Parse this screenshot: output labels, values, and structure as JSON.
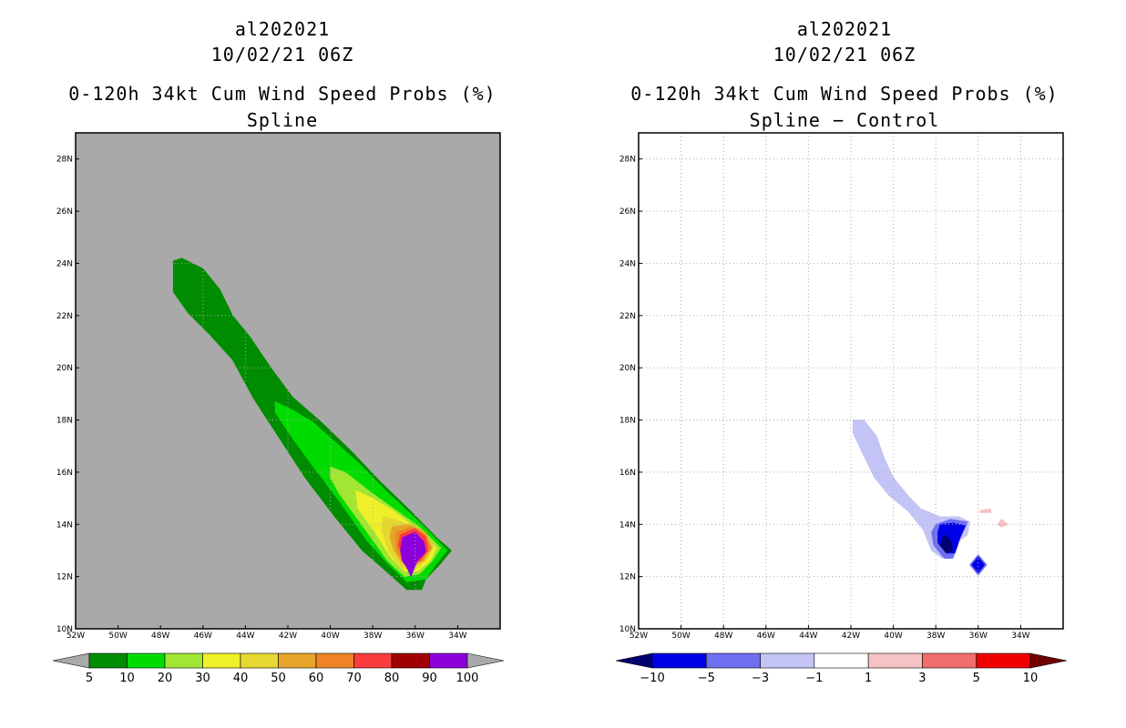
{
  "left": {
    "storm_id": "al202021",
    "datetime": "10/02/21 06Z",
    "product": "0-120h 34kt Cum Wind Speed Probs (%)",
    "subtitle": "Spline"
  },
  "right": {
    "storm_id": "al202021",
    "datetime": "10/02/21 06Z",
    "product": "0-120h 34kt Cum Wind Speed Probs (%)",
    "subtitle": "Spline − Control"
  },
  "chart_data": [
    {
      "type": "heatmap",
      "name": "spline",
      "title": "0-120h 34kt Cum Wind Speed Probs (%)",
      "subtitle": "Spline",
      "xlim": [
        -52,
        -32
      ],
      "ylim": [
        10,
        29
      ],
      "x_ticks": [
        -52,
        -50,
        -48,
        -46,
        -44,
        -42,
        -40,
        -38,
        -36,
        -34
      ],
      "x_tick_labels": [
        "52W",
        "50W",
        "48W",
        "46W",
        "44W",
        "42W",
        "40W",
        "38W",
        "36W",
        "34W"
      ],
      "y_ticks": [
        10,
        12,
        14,
        16,
        18,
        20,
        22,
        24,
        26,
        28
      ],
      "y_tick_labels": [
        "10N",
        "12N",
        "14N",
        "16N",
        "18N",
        "20N",
        "22N",
        "24N",
        "26N",
        "28N"
      ],
      "background_color": "#a9a9a9",
      "grid": true,
      "colorbar": {
        "levels": [
          "5",
          "10",
          "20",
          "30",
          "40",
          "50",
          "60",
          "70",
          "80",
          "90",
          "100"
        ],
        "colors": [
          "#008c00",
          "#00dc00",
          "#a0e632",
          "#f0f028",
          "#e6d732",
          "#e6a528",
          "#f08228",
          "#fa3c3c",
          "#a00000",
          "#8c00dc"
        ],
        "extend_colors": [
          "#a9a9a9",
          "#a9a9a9"
        ]
      },
      "contours": [
        {
          "level": 5,
          "color": "#008c00",
          "points": [
            [
              -47.4,
              24.1
            ],
            [
              -47.0,
              24.2
            ],
            [
              -46.0,
              23.8
            ],
            [
              -45.2,
              23.0
            ],
            [
              -44.6,
              22.0
            ],
            [
              -43.8,
              21.2
            ],
            [
              -42.8,
              20.0
            ],
            [
              -41.8,
              18.9
            ],
            [
              -40.4,
              17.9
            ],
            [
              -39.0,
              16.8
            ],
            [
              -37.6,
              15.6
            ],
            [
              -36.2,
              14.5
            ],
            [
              -35.0,
              13.5
            ],
            [
              -34.3,
              13.0
            ],
            [
              -34.8,
              12.5
            ],
            [
              -35.5,
              11.9
            ],
            [
              -35.7,
              11.5
            ],
            [
              -36.4,
              11.5
            ],
            [
              -37.5,
              12.3
            ],
            [
              -38.5,
              13.0
            ],
            [
              -39.8,
              14.3
            ],
            [
              -41.2,
              15.8
            ],
            [
              -42.4,
              17.3
            ],
            [
              -43.6,
              18.8
            ],
            [
              -44.6,
              20.3
            ],
            [
              -45.6,
              21.2
            ],
            [
              -46.7,
              22.1
            ],
            [
              -47.4,
              22.9
            ]
          ]
        },
        {
          "level": 10,
          "color": "#00dc00",
          "points": [
            [
              -42.6,
              18.7
            ],
            [
              -41.8,
              18.4
            ],
            [
              -40.8,
              17.9
            ],
            [
              -39.7,
              17.1
            ],
            [
              -38.6,
              16.3
            ],
            [
              -37.4,
              15.3
            ],
            [
              -36.2,
              14.4
            ],
            [
              -35.2,
              13.6
            ],
            [
              -34.5,
              13.0
            ],
            [
              -35.0,
              12.5
            ],
            [
              -35.5,
              11.9
            ],
            [
              -36.4,
              11.8
            ],
            [
              -37.3,
              12.5
            ],
            [
              -38.3,
              13.4
            ],
            [
              -39.5,
              14.8
            ],
            [
              -40.7,
              16.1
            ],
            [
              -41.7,
              17.2
            ],
            [
              -42.6,
              18.3
            ]
          ]
        },
        {
          "level": 20,
          "color": "#a0e632",
          "points": [
            [
              -40.0,
              16.2
            ],
            [
              -39.3,
              16.0
            ],
            [
              -38.2,
              15.3
            ],
            [
              -37.0,
              14.6
            ],
            [
              -35.8,
              13.9
            ],
            [
              -34.8,
              13.1
            ],
            [
              -35.2,
              12.6
            ],
            [
              -35.8,
              12.1
            ],
            [
              -36.5,
              12.0
            ],
            [
              -37.3,
              12.6
            ],
            [
              -38.0,
              13.4
            ],
            [
              -38.8,
              14.3
            ],
            [
              -39.6,
              15.2
            ],
            [
              -40.0,
              15.8
            ]
          ]
        },
        {
          "level": 30,
          "color": "#f0f028",
          "points": [
            [
              -38.8,
              15.3
            ],
            [
              -38.0,
              15.0
            ],
            [
              -37.0,
              14.5
            ],
            [
              -35.9,
              13.8
            ],
            [
              -35.0,
              13.1
            ],
            [
              -35.3,
              12.6
            ],
            [
              -35.9,
              12.2
            ],
            [
              -36.5,
              12.2
            ],
            [
              -37.2,
              12.8
            ],
            [
              -37.9,
              13.7
            ],
            [
              -38.7,
              14.6
            ]
          ]
        },
        {
          "level": 40,
          "color": "#e6d732",
          "points": [
            [
              -37.5,
              14.3
            ],
            [
              -37.0,
              14.2
            ],
            [
              -36.0,
              13.9
            ],
            [
              -35.1,
              13.2
            ],
            [
              -35.5,
              12.6
            ],
            [
              -36.0,
              12.3
            ],
            [
              -36.6,
              12.3
            ],
            [
              -37.2,
              12.9
            ],
            [
              -37.6,
              13.8
            ]
          ]
        },
        {
          "level": 50,
          "color": "#e6a528",
          "points": [
            [
              -37.1,
              13.9
            ],
            [
              -36.3,
              14.0
            ],
            [
              -35.5,
              13.7
            ],
            [
              -35.2,
              13.1
            ],
            [
              -35.6,
              12.6
            ],
            [
              -36.1,
              12.4
            ],
            [
              -36.6,
              12.5
            ],
            [
              -37.0,
              13.0
            ],
            [
              -37.2,
              13.5
            ]
          ]
        },
        {
          "level": 60,
          "color": "#f08228",
          "points": [
            [
              -36.9,
              13.7
            ],
            [
              -36.2,
              13.9
            ],
            [
              -35.5,
              13.6
            ],
            [
              -35.3,
              13.1
            ],
            [
              -35.7,
              12.6
            ],
            [
              -36.1,
              12.5
            ],
            [
              -36.6,
              12.6
            ],
            [
              -36.9,
              13.1
            ]
          ]
        },
        {
          "level": 70,
          "color": "#fa3c3c",
          "points": [
            [
              -36.7,
              13.6
            ],
            [
              -36.0,
              13.85
            ],
            [
              -35.5,
              13.5
            ],
            [
              -35.4,
              13.0
            ],
            [
              -35.8,
              12.6
            ],
            [
              -36.2,
              12.55
            ],
            [
              -36.5,
              12.7
            ],
            [
              -36.8,
              13.2
            ]
          ]
        },
        {
          "level": 90,
          "color": "#8c00dc",
          "points": [
            [
              -36.6,
              13.5
            ],
            [
              -36.0,
              13.7
            ],
            [
              -35.6,
              13.35
            ],
            [
              -35.5,
              12.95
            ],
            [
              -35.9,
              12.6
            ],
            [
              -36.2,
              12.0
            ],
            [
              -36.4,
              12.35
            ],
            [
              -36.6,
              12.6
            ],
            [
              -36.7,
              13.0
            ]
          ]
        }
      ]
    },
    {
      "type": "heatmap",
      "name": "difference",
      "title": "0-120h 34kt Cum Wind Speed Probs (%)",
      "subtitle": "Spline − Control",
      "xlim": [
        -52,
        -32
      ],
      "ylim": [
        10,
        29
      ],
      "x_ticks": [
        -52,
        -50,
        -48,
        -46,
        -44,
        -42,
        -40,
        -38,
        -36,
        -34
      ],
      "x_tick_labels": [
        "52W",
        "50W",
        "48W",
        "46W",
        "44W",
        "42W",
        "40W",
        "38W",
        "36W",
        "34W"
      ],
      "y_ticks": [
        10,
        12,
        14,
        16,
        18,
        20,
        22,
        24,
        26,
        28
      ],
      "y_tick_labels": [
        "10N",
        "12N",
        "14N",
        "16N",
        "18N",
        "20N",
        "22N",
        "24N",
        "26N",
        "28N"
      ],
      "background_color": "#ffffff",
      "grid": true,
      "colorbar": {
        "levels": [
          "−10",
          "−5",
          "−3",
          "−1",
          "1",
          "3",
          "5",
          "10"
        ],
        "colors": [
          "#0000e6",
          "#6e6ef0",
          "#c3c3f5",
          "#ffffff",
          "#f5c3c3",
          "#f06e6e",
          "#f00000"
        ],
        "extend_colors": [
          "#000070",
          "#700000"
        ]
      },
      "contours": [
        {
          "level": -1,
          "color": "#c3c3f5",
          "points": [
            [
              -41.9,
              18.0
            ],
            [
              -41.4,
              18.0
            ],
            [
              -40.8,
              17.4
            ],
            [
              -40.4,
              16.5
            ],
            [
              -40.0,
              15.8
            ],
            [
              -39.3,
              15.1
            ],
            [
              -38.7,
              14.6
            ],
            [
              -37.8,
              14.3
            ],
            [
              -36.9,
              14.3
            ],
            [
              -36.4,
              14.1
            ],
            [
              -36.5,
              13.6
            ],
            [
              -37.2,
              13.2
            ],
            [
              -37.7,
              12.7
            ],
            [
              -38.2,
              13.0
            ],
            [
              -38.6,
              13.8
            ],
            [
              -39.3,
              14.5
            ],
            [
              -40.2,
              15.1
            ],
            [
              -40.9,
              15.8
            ],
            [
              -41.5,
              16.8
            ],
            [
              -41.9,
              17.5
            ]
          ]
        },
        {
          "level": -3,
          "color": "#6e6ef0",
          "points": [
            [
              -38.0,
              14.0
            ],
            [
              -37.3,
              14.2
            ],
            [
              -36.5,
              14.1
            ],
            [
              -36.8,
              13.6
            ],
            [
              -37.0,
              13.1
            ],
            [
              -37.2,
              12.7
            ],
            [
              -37.6,
              12.7
            ],
            [
              -38.1,
              13.2
            ],
            [
              -38.2,
              13.7
            ]
          ]
        },
        {
          "level": -5,
          "color": "#0000e6",
          "points": [
            [
              -37.8,
              14.0
            ],
            [
              -37.2,
              14.05
            ],
            [
              -36.6,
              13.95
            ],
            [
              -36.9,
              13.4
            ],
            [
              -37.1,
              12.9
            ],
            [
              -37.5,
              12.9
            ],
            [
              -37.9,
              13.3
            ],
            [
              -37.9,
              13.7
            ]
          ]
        },
        {
          "level": -10,
          "color": "#000070",
          "points": [
            [
              -37.6,
              13.6
            ],
            [
              -37.3,
              13.4
            ],
            [
              -37.2,
              13.0
            ],
            [
              -37.5,
              12.9
            ],
            [
              -37.8,
              13.2
            ]
          ]
        },
        {
          "level": -3,
          "color": "#6e6ef0",
          "points": [
            [
              -36.0,
              12.85
            ],
            [
              -35.6,
              12.45
            ],
            [
              -36.0,
              12.05
            ],
            [
              -36.4,
              12.45
            ]
          ]
        },
        {
          "level": -5,
          "color": "#0000e6",
          "points": [
            [
              -36.0,
              12.75
            ],
            [
              -35.7,
              12.45
            ],
            [
              -36.0,
              12.15
            ],
            [
              -36.3,
              12.45
            ]
          ]
        },
        {
          "level": 1,
          "color": "#f5c3c3",
          "points": [
            [
              -35.9,
              14.55
            ],
            [
              -35.4,
              14.6
            ],
            [
              -35.4,
              14.45
            ],
            [
              -35.9,
              14.45
            ]
          ]
        },
        {
          "level": 1,
          "color": "#f5c3c3",
          "points": [
            [
              -34.9,
              14.2
            ],
            [
              -34.6,
              14.0
            ],
            [
              -34.9,
              13.9
            ],
            [
              -35.1,
              14.0
            ]
          ]
        }
      ]
    }
  ]
}
